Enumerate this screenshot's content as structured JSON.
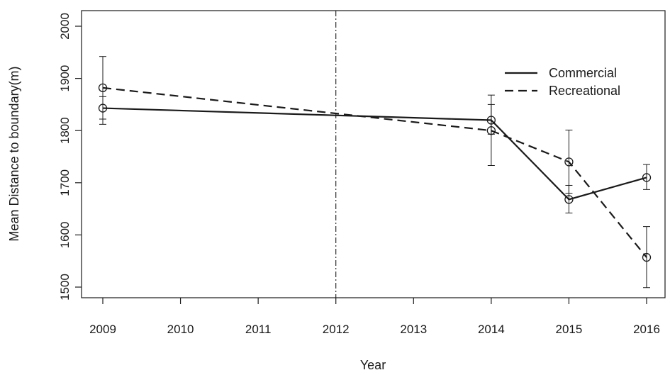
{
  "chart_data": {
    "type": "line",
    "title": "",
    "xlabel": "Year",
    "ylabel": "Mean Distance to boundary(m)",
    "x": [
      2009,
      2014,
      2015,
      2016
    ],
    "xticks": [
      "2009",
      "2010",
      "2011",
      "2012",
      "2013",
      "2014",
      "2015",
      "2016"
    ],
    "yticks": [
      "1500",
      "1600",
      "1700",
      "1800",
      "1900",
      "2000"
    ],
    "ylim": [
      1500,
      2000
    ],
    "grid": false,
    "vline": 2012,
    "legend_position": "top-right",
    "series": [
      {
        "name": "Commercial",
        "style": "solid",
        "x": [
          2009,
          2014,
          2015,
          2016
        ],
        "values": [
          1843,
          1820,
          1668,
          1710
        ],
        "err_low": [
          1822,
          1733,
          1642,
          1687
        ],
        "err_high": [
          1865,
          1868,
          1695,
          1735
        ]
      },
      {
        "name": "Recreational",
        "style": "dashed",
        "x": [
          2009,
          2014,
          2015,
          2016
        ],
        "values": [
          1882,
          1800,
          1740,
          1557
        ],
        "err_low": [
          1812,
          1793,
          1680,
          1499
        ],
        "err_high": [
          1942,
          1850,
          1801,
          1616
        ]
      }
    ]
  }
}
